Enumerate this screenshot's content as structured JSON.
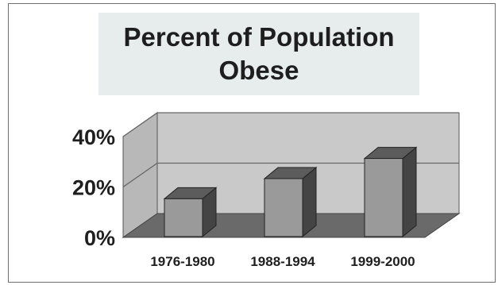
{
  "chart_data": {
    "type": "bar",
    "title": "Percent of Population\nObese",
    "categories": [
      "1976-1980",
      "1988-1994",
      "1999-2000"
    ],
    "series": [
      {
        "values": [
          15,
          23,
          31
        ]
      }
    ],
    "ylim": [
      0,
      40
    ],
    "yticks": [
      "0%",
      "20%",
      "40%"
    ],
    "grid": true,
    "style": "3d",
    "colors": {
      "bar_front": "#9a9a9a",
      "bar_side": "#444444",
      "bar_top": "#5c5c5c",
      "back_wall": "#c9c9c9",
      "left_wall": "#b8b8b8",
      "floor": "#6a6a6a"
    }
  }
}
